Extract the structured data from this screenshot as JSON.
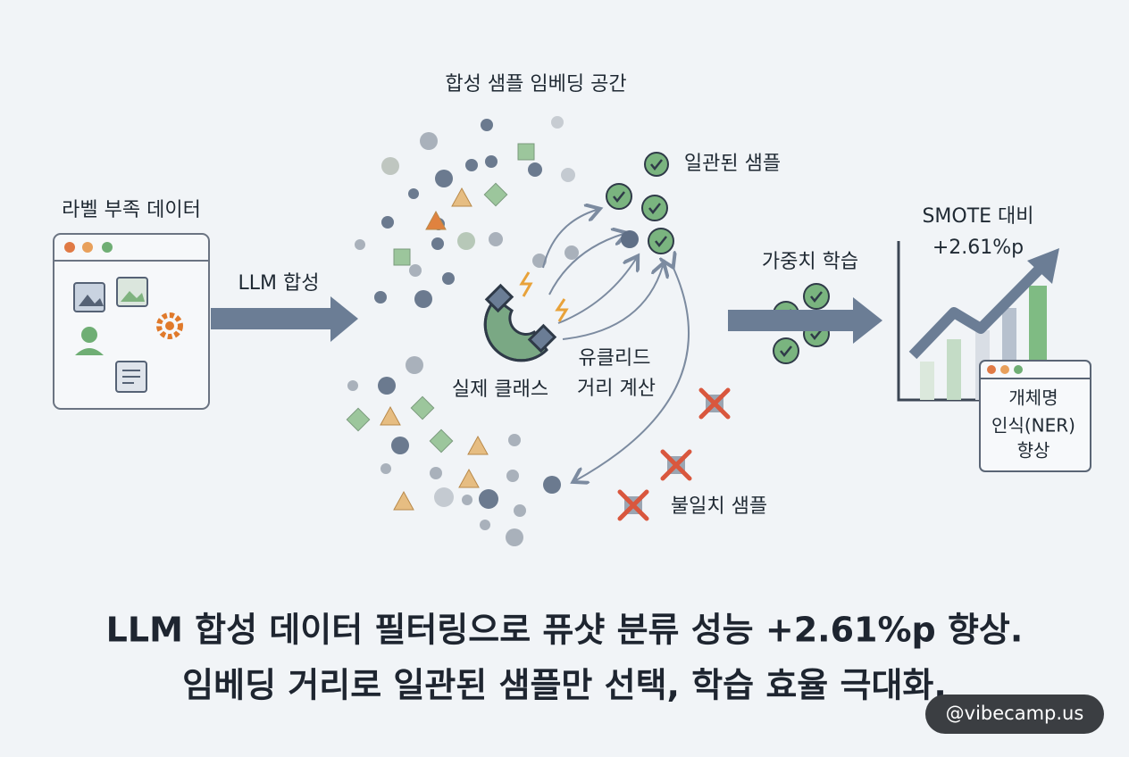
{
  "embedding_space": {
    "title": "합성 샘플 임베딩 공간"
  },
  "input": {
    "label": "라벨 부족 데이터"
  },
  "synthesis": {
    "label": "LLM 합성"
  },
  "real_class": {
    "label": "실제 클래스"
  },
  "distance": {
    "lines": [
      "유클리드",
      "거리 계산"
    ]
  },
  "consistent": {
    "label": "일관된 샘플"
  },
  "inconsistent": {
    "label": "불일치 샘플"
  },
  "training": {
    "label": "가중치 학습"
  },
  "result": {
    "comparison": [
      "SMOTE 대비",
      "+2.61%p"
    ],
    "task": [
      "개체명",
      "인식(NER)",
      "향상"
    ]
  },
  "caption": [
    "LLM 합성 데이터 필터링으로 퓨샷 분류 성능 +2.61%p 향상.",
    "임베딩 거리로 일관된 샘플만 선택, 학습 효율 극대화."
  ],
  "watermark": "@vibecamp.us"
}
